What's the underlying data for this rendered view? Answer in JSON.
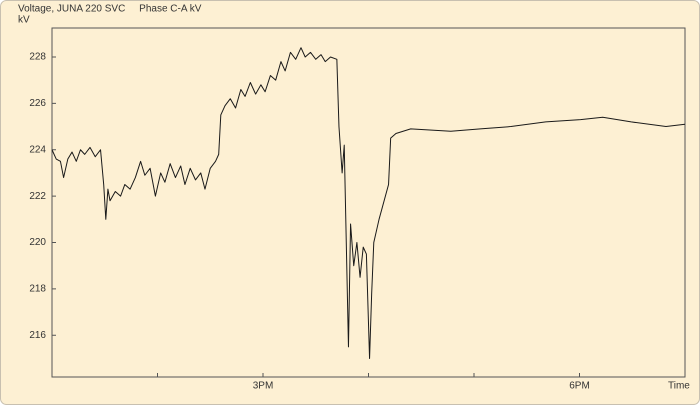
{
  "chart_data": {
    "type": "line",
    "title": "Voltage, JUNA 220 SVC     Phase C-A kV",
    "y_label": "kV",
    "x_label": "Time",
    "xlim": [
      13,
      19
    ],
    "xticks": [
      {
        "value": 15,
        "label": "3PM"
      },
      {
        "value": 18,
        "label": "6PM"
      }
    ],
    "xminorticks": [
      14,
      16,
      17
    ],
    "ylim": [
      214.2,
      229.25
    ],
    "yticks": [
      216,
      218,
      220,
      222,
      224,
      226,
      228
    ],
    "grid": false,
    "series": [
      {
        "name": "Phase C-A",
        "color": "#1a1a1a",
        "x": [
          13.0,
          13.04,
          13.08,
          13.11,
          13.15,
          13.19,
          13.23,
          13.27,
          13.31,
          13.36,
          13.41,
          13.46,
          13.49,
          13.51,
          13.53,
          13.55,
          13.6,
          13.65,
          13.69,
          13.74,
          13.79,
          13.84,
          13.88,
          13.93,
          13.98,
          14.03,
          14.07,
          14.12,
          14.17,
          14.22,
          14.26,
          14.31,
          14.36,
          14.41,
          14.45,
          14.5,
          14.55,
          14.58,
          14.6,
          14.64,
          14.69,
          14.74,
          14.79,
          14.83,
          14.88,
          14.93,
          14.98,
          15.02,
          15.07,
          15.12,
          15.17,
          15.21,
          15.26,
          15.31,
          15.36,
          15.4,
          15.45,
          15.5,
          15.55,
          15.59,
          15.64,
          15.7,
          15.72,
          15.75,
          15.77,
          15.81,
          15.83,
          15.86,
          15.89,
          15.92,
          15.95,
          15.98,
          16.01,
          16.03,
          16.05,
          16.1,
          16.19,
          16.21,
          16.26,
          16.4,
          16.78,
          17.06,
          17.35,
          17.68,
          18.01,
          18.22,
          18.49,
          18.82,
          19.0
        ],
        "values": [
          224.0,
          223.6,
          223.5,
          222.8,
          223.6,
          223.9,
          223.5,
          224.0,
          223.8,
          224.1,
          223.7,
          224.0,
          222.5,
          221.0,
          222.3,
          221.8,
          222.2,
          222.0,
          222.5,
          222.3,
          222.8,
          223.5,
          222.9,
          223.2,
          222.0,
          223.0,
          222.6,
          223.4,
          222.8,
          223.3,
          222.5,
          223.2,
          222.7,
          223.0,
          222.3,
          223.2,
          223.5,
          223.8,
          225.5,
          225.9,
          226.2,
          225.8,
          226.6,
          226.3,
          226.9,
          226.4,
          226.8,
          226.5,
          227.2,
          227.0,
          227.8,
          227.4,
          228.2,
          227.9,
          228.4,
          228.0,
          228.2,
          227.9,
          228.1,
          227.8,
          228.0,
          227.9,
          225.0,
          223.0,
          224.2,
          215.5,
          220.8,
          219.0,
          220.0,
          218.5,
          219.8,
          219.5,
          215.0,
          217.8,
          220.0,
          221.0,
          222.5,
          224.5,
          224.7,
          224.9,
          224.8,
          224.9,
          225.0,
          225.2,
          225.3,
          225.4,
          225.2,
          225.0,
          225.1
        ]
      }
    ]
  }
}
